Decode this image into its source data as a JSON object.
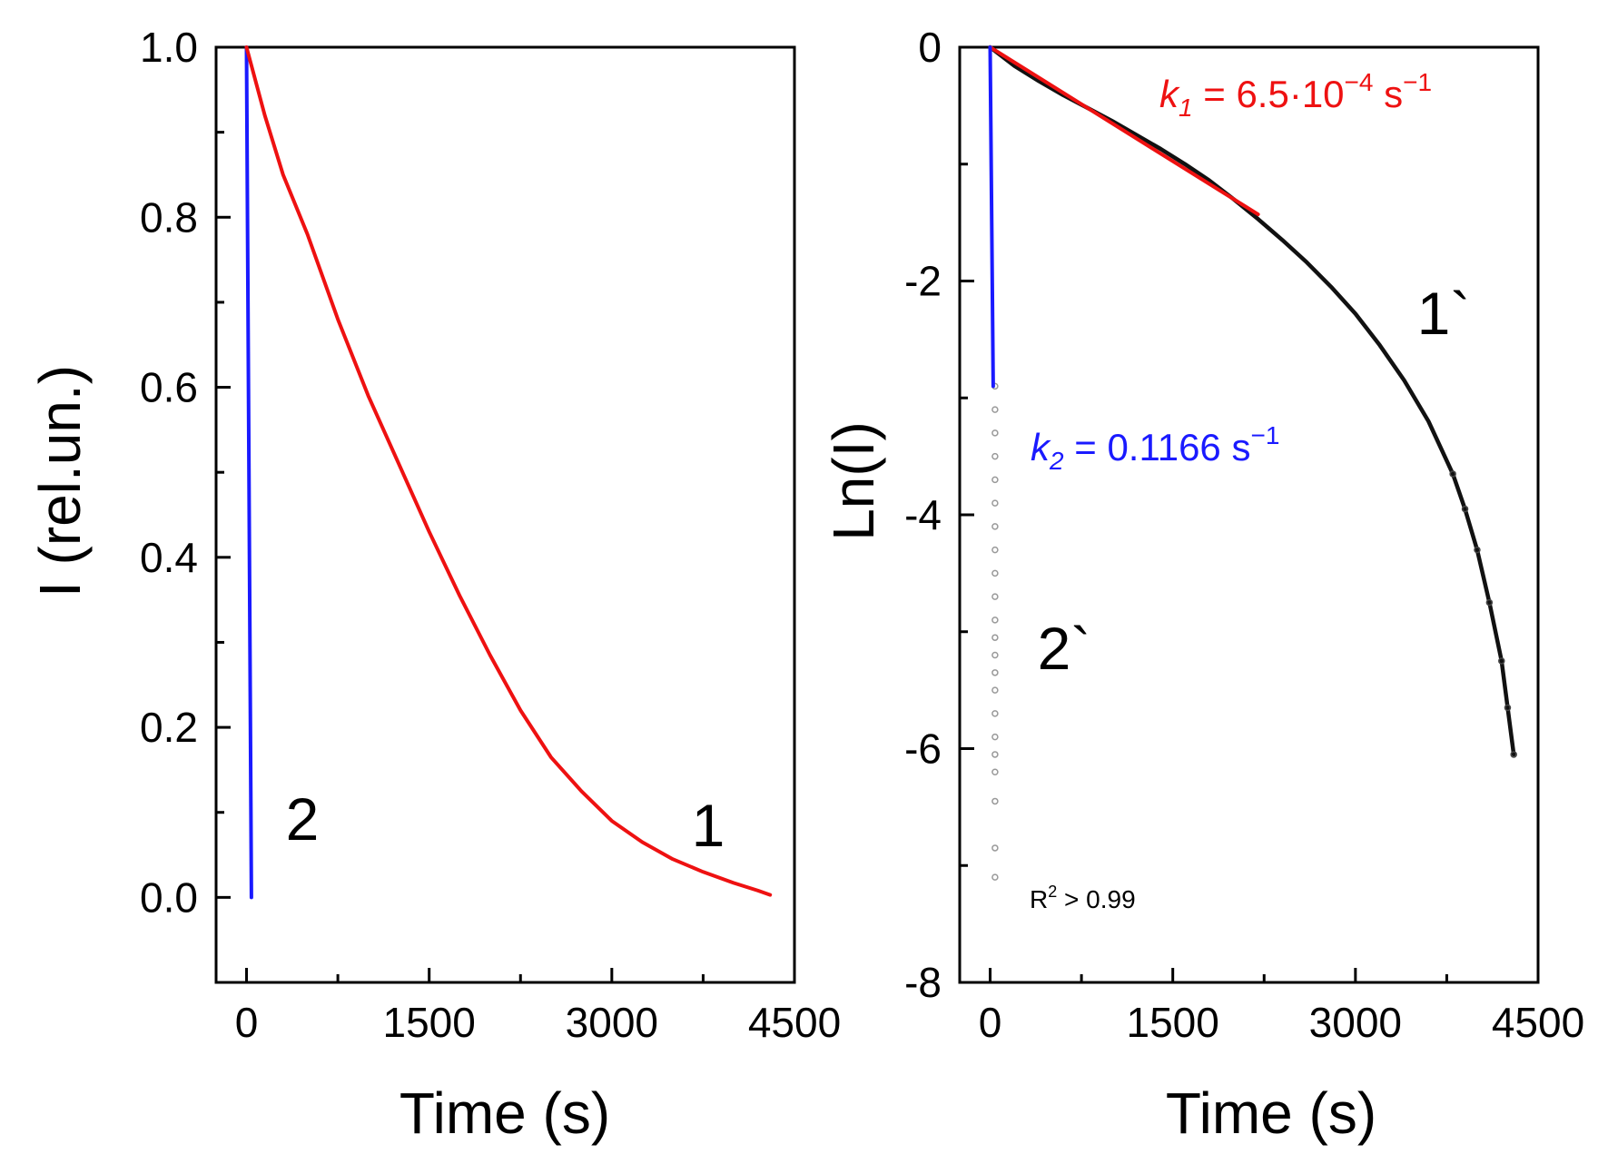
{
  "chart_data": [
    {
      "type": "line",
      "xlabel": "Time (s)",
      "ylabel": "I (rel.un.)",
      "xlim": [
        -250,
        4500
      ],
      "ylim": [
        -0.1,
        1.0
      ],
      "xticks": [
        0,
        1500,
        3000,
        4500
      ],
      "xtick_labels": [
        "0",
        "1500",
        "3000",
        "4500"
      ],
      "yticks": [
        0.0,
        0.2,
        0.4,
        0.6,
        0.8,
        1.0
      ],
      "ytick_labels": [
        "0.0",
        "0.2",
        "0.4",
        "0.6",
        "0.8",
        "1.0"
      ],
      "grid": false,
      "series": [
        {
          "name": "2",
          "color": "#1a1aff",
          "x": [
            0,
            40
          ],
          "y": [
            1.0,
            0.0
          ]
        },
        {
          "name": "1",
          "color": "#ee1111",
          "x": [
            0,
            150,
            300,
            500,
            750,
            1000,
            1250,
            1500,
            1750,
            2000,
            2250,
            2500,
            2750,
            3000,
            3250,
            3500,
            3750,
            4000,
            4200,
            4300
          ],
          "y": [
            1.0,
            0.92,
            0.85,
            0.78,
            0.68,
            0.59,
            0.51,
            0.43,
            0.355,
            0.285,
            0.22,
            0.165,
            0.125,
            0.09,
            0.065,
            0.045,
            0.03,
            0.017,
            0.008,
            0.003
          ]
        }
      ],
      "annotations": [
        {
          "text": "2",
          "x": 350,
          "y": 0.14
        },
        {
          "text": "1",
          "x": 3750,
          "y": 0.14
        }
      ]
    },
    {
      "type": "line",
      "xlabel": "Time (s)",
      "ylabel": "Ln(I)",
      "xlim": [
        -250,
        4500
      ],
      "ylim": [
        -8,
        0
      ],
      "xticks": [
        0,
        1500,
        3000,
        4500
      ],
      "xtick_labels": [
        "0",
        "1500",
        "3000",
        "4500"
      ],
      "yticks": [
        0,
        -2,
        -4,
        -6,
        -8
      ],
      "ytick_labels": [
        "0",
        "-2",
        "-4",
        "-6",
        "-8"
      ],
      "grid": false,
      "series": [
        {
          "name": "1`",
          "color": "#111111",
          "x": [
            0,
            200,
            400,
            600,
            800,
            1000,
            1200,
            1400,
            1600,
            1800,
            2000,
            2200,
            2400,
            2600,
            2800,
            3000,
            3200,
            3400,
            3600,
            3800,
            3900,
            4000,
            4100,
            4200,
            4250,
            4300
          ],
          "y": [
            0,
            -0.16,
            -0.29,
            -0.41,
            -0.52,
            -0.63,
            -0.75,
            -0.87,
            -1.0,
            -1.14,
            -1.3,
            -1.47,
            -1.65,
            -1.84,
            -2.05,
            -2.28,
            -2.55,
            -2.85,
            -3.2,
            -3.65,
            -3.95,
            -4.3,
            -4.75,
            -5.25,
            -5.65,
            -6.05
          ]
        },
        {
          "name": "2`",
          "color": "#999999",
          "x": [
            40,
            40,
            40,
            40,
            40,
            40,
            40,
            40,
            40,
            40,
            40,
            40,
            40,
            40,
            40,
            40,
            40,
            40,
            40,
            40,
            40,
            40
          ],
          "y": [
            -2.9,
            -3.1,
            -3.3,
            -3.5,
            -3.7,
            -3.9,
            -4.1,
            -4.3,
            -4.5,
            -4.7,
            -4.9,
            -5.05,
            -5.2,
            -5.35,
            -5.5,
            -5.7,
            -5.9,
            -6.05,
            -6.2,
            -6.45,
            -6.85,
            -7.1
          ]
        },
        {
          "name": "k1 fit",
          "color": "#ee1111",
          "x": [
            0,
            2200
          ],
          "y": [
            0,
            -1.43
          ]
        },
        {
          "name": "k2 fit",
          "color": "#1a1aff",
          "x": [
            0,
            25
          ],
          "y": [
            0,
            -2.9
          ]
        }
      ],
      "annotations": [
        {
          "text": "1`",
          "x": 3600,
          "y": -2.35
        },
        {
          "text": "2`",
          "x": 350,
          "y": -5.2
        },
        {
          "text": "R² > 0.99",
          "x": 350,
          "y": -7.3
        }
      ]
    }
  ],
  "labels": {
    "k1_sym": "k",
    "k1_sub": "1",
    "k1_eq": " = 6.5·10",
    "k1_exp": "−4",
    "k1_unit": " s",
    "k1_unit_exp": "−1",
    "k2_sym": "k",
    "k2_sub": "2",
    "k2_eq": " = 0.1166 s",
    "k2_exp": "−1",
    "r2_pre": "R",
    "r2_exp": "2",
    "r2_post": " > 0.99"
  },
  "colors": {
    "red": "#ee1111",
    "blue": "#1a1aff",
    "black": "#111111",
    "gray": "#999999"
  }
}
